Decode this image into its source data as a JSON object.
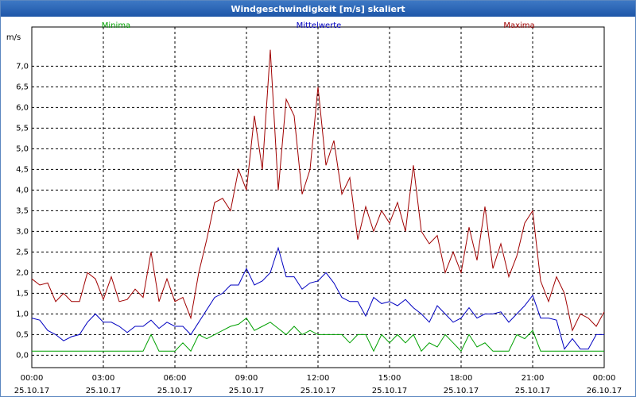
{
  "chart_data": {
    "type": "line",
    "title": "Windgeschwindigkeit [m/s] skaliert",
    "y_label": "m/s",
    "x": [
      0,
      20,
      40,
      60,
      80,
      100,
      120,
      140,
      160,
      180,
      200,
      220,
      240,
      260,
      280,
      300,
      320,
      340,
      360,
      380,
      400,
      420,
      440,
      460,
      480,
      500,
      520,
      540,
      560,
      580,
      600,
      620,
      640,
      660,
      680,
      700,
      720,
      740,
      760,
      780,
      800,
      820,
      840,
      860,
      880,
      900,
      920,
      940,
      960,
      980,
      1000,
      1020,
      1040,
      1060,
      1080,
      1100,
      1120,
      1140,
      1160,
      1180,
      1200,
      1220,
      1240,
      1260,
      1280,
      1300,
      1320,
      1340,
      1360,
      1380,
      1400,
      1420,
      1440
    ],
    "series": [
      {
        "name": "Minima",
        "color": "#00a000",
        "values": [
          0.1,
          0.1,
          0.1,
          0.1,
          0.1,
          0.1,
          0.1,
          0.1,
          0.1,
          0.1,
          0.1,
          0.1,
          0.1,
          0.1,
          0.1,
          0.5,
          0.1,
          0.1,
          0.1,
          0.3,
          0.1,
          0.5,
          0.4,
          0.5,
          0.6,
          0.7,
          0.75,
          0.9,
          0.6,
          0.7,
          0.8,
          0.65,
          0.5,
          0.7,
          0.5,
          0.6,
          0.5,
          0.5,
          0.5,
          0.5,
          0.3,
          0.5,
          0.5,
          0.1,
          0.5,
          0.3,
          0.5,
          0.3,
          0.5,
          0.1,
          0.3,
          0.2,
          0.5,
          0.3,
          0.1,
          0.5,
          0.2,
          0.3,
          0.1,
          0.1,
          0.1,
          0.5,
          0.4,
          0.6,
          0.1,
          0.1,
          0.1,
          0.1,
          0.1,
          0.1,
          0.1,
          0.1,
          0.1
        ]
      },
      {
        "name": "Mittelwerte",
        "color": "#0000c0",
        "values": [
          0.9,
          0.85,
          0.6,
          0.5,
          0.35,
          0.45,
          0.5,
          0.8,
          1.0,
          0.8,
          0.8,
          0.7,
          0.55,
          0.7,
          0.7,
          0.85,
          0.65,
          0.8,
          0.7,
          0.7,
          0.5,
          0.8,
          1.1,
          1.4,
          1.5,
          1.7,
          1.7,
          2.1,
          1.7,
          1.8,
          2.0,
          2.6,
          1.9,
          1.9,
          1.6,
          1.75,
          1.8,
          2.0,
          1.75,
          1.4,
          1.3,
          1.3,
          0.95,
          1.4,
          1.25,
          1.3,
          1.2,
          1.35,
          1.15,
          1.0,
          0.8,
          1.2,
          1.0,
          0.8,
          0.9,
          1.15,
          0.9,
          1.0,
          1.0,
          1.05,
          0.8,
          1.0,
          1.2,
          1.45,
          0.9,
          0.9,
          0.85,
          0.15,
          0.4,
          0.15,
          0.15,
          0.5,
          0.5
        ]
      },
      {
        "name": "Maxima",
        "color": "#a00000",
        "values": [
          1.85,
          1.7,
          1.75,
          1.3,
          1.5,
          1.3,
          1.3,
          2.0,
          1.85,
          1.35,
          1.9,
          1.3,
          1.35,
          1.6,
          1.4,
          2.5,
          1.3,
          1.85,
          1.3,
          1.4,
          0.9,
          2.0,
          2.8,
          3.7,
          3.8,
          3.5,
          4.5,
          4.0,
          5.8,
          4.5,
          7.4,
          4.0,
          6.2,
          5.8,
          3.9,
          4.5,
          6.5,
          4.6,
          5.2,
          3.9,
          4.3,
          2.8,
          3.6,
          3.0,
          3.5,
          3.2,
          3.7,
          3.0,
          4.6,
          3.0,
          2.7,
          2.9,
          2.0,
          2.5,
          2.0,
          3.1,
          2.3,
          3.6,
          2.1,
          2.7,
          1.9,
          2.4,
          3.2,
          3.5,
          1.8,
          1.3,
          1.9,
          1.5,
          0.6,
          1.0,
          0.9,
          0.7,
          1.05
        ]
      }
    ],
    "xlim": [
      0,
      1440
    ],
    "xticks": [
      {
        "value": 0,
        "label": "00:00",
        "date": "25.10.17"
      },
      {
        "value": 180,
        "label": "03:00",
        "date": "25.10.17"
      },
      {
        "value": 360,
        "label": "06:00",
        "date": "25.10.17"
      },
      {
        "value": 540,
        "label": "09:00",
        "date": "25.10.17"
      },
      {
        "value": 720,
        "label": "12:00",
        "date": "25.10.17"
      },
      {
        "value": 900,
        "label": "15:00",
        "date": "25.10.17"
      },
      {
        "value": 1080,
        "label": "18:00",
        "date": "25.10.17"
      },
      {
        "value": 1260,
        "label": "21:00",
        "date": "25.10.17"
      },
      {
        "value": 1440,
        "label": "00:00",
        "date": "26.10.17"
      }
    ],
    "ylim": [
      -0.3,
      7.95
    ],
    "yticks": [
      {
        "value": 0,
        "label": "0,0"
      },
      {
        "value": 0.5,
        "label": "0,5"
      },
      {
        "value": 1,
        "label": "1,0"
      },
      {
        "value": 1.5,
        "label": "1,5"
      },
      {
        "value": 2,
        "label": "2,0"
      },
      {
        "value": 2.5,
        "label": "2,5"
      },
      {
        "value": 3,
        "label": "3,0"
      },
      {
        "value": 3.5,
        "label": "3,5"
      },
      {
        "value": 4,
        "label": "4,0"
      },
      {
        "value": 4.5,
        "label": "4,5"
      },
      {
        "value": 5,
        "label": "5,0"
      },
      {
        "value": 5.5,
        "label": "5,5"
      },
      {
        "value": 6,
        "label": "6,0"
      },
      {
        "value": 6.5,
        "label": "6,5"
      },
      {
        "value": 7,
        "label": "7,0"
      }
    ],
    "grid": true
  }
}
